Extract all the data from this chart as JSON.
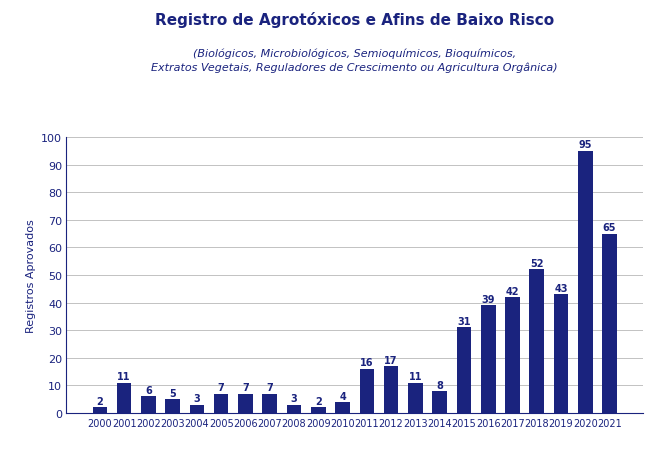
{
  "title_line1": "Registro de Agrotóxicos e Afins de Baixo Risco",
  "title_line2": "(Biológicos, Microbiológicos, Semioquímicos, Bioquímicos,\nExtratos Vegetais, Reguladores de Crescimento ou Agricultura Orgânica)",
  "ylabel": "Registros Aprovados",
  "years": [
    2000,
    2001,
    2002,
    2003,
    2004,
    2005,
    2006,
    2007,
    2008,
    2009,
    2010,
    2011,
    2012,
    2013,
    2014,
    2015,
    2016,
    2017,
    2018,
    2019,
    2020,
    2021
  ],
  "values": [
    2,
    11,
    6,
    5,
    3,
    7,
    7,
    7,
    3,
    2,
    4,
    16,
    17,
    11,
    8,
    31,
    39,
    42,
    52,
    43,
    95,
    65
  ],
  "bar_color": "#1a237e",
  "label_color": "#1a237e",
  "title_color": "#1a237e",
  "axis_color": "#1a237e",
  "tick_color": "#1a237e",
  "grid_color": "#aaaaaa",
  "background_color": "#ffffff",
  "ylim": [
    0,
    100
  ],
  "yticks": [
    0,
    10,
    20,
    30,
    40,
    50,
    60,
    70,
    80,
    90,
    100
  ],
  "title1_fontsize": 11,
  "title2_fontsize": 8,
  "ylabel_fontsize": 8,
  "xtick_fontsize": 7,
  "ytick_fontsize": 8,
  "bar_label_fontsize": 7,
  "bar_width": 0.6
}
